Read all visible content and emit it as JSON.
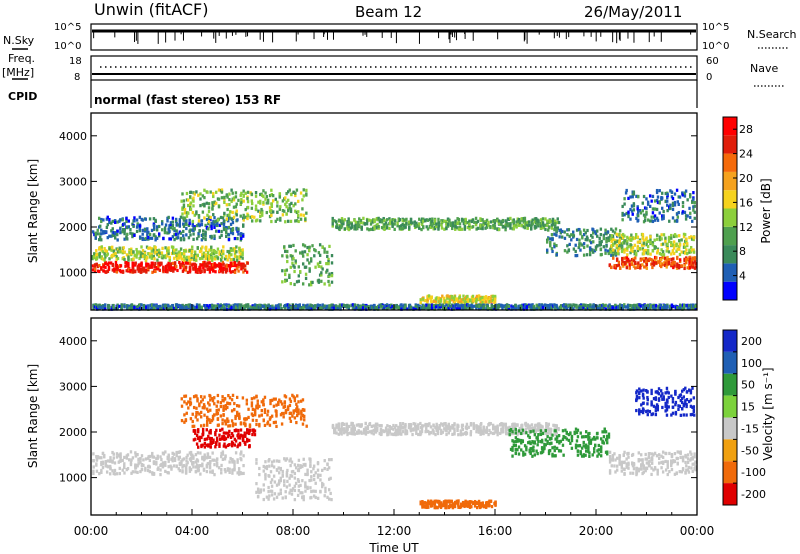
{
  "header": {
    "station": "Unwin (fitACF)",
    "beam": "Beam 12",
    "date": "26/May/2011"
  },
  "noise_panel": {
    "left_label": "N.Sky",
    "left_ticks": [
      "10^5",
      "10^0"
    ],
    "right_ticks": [
      "10^5",
      "10^0"
    ],
    "right_label": "N.Search"
  },
  "freq_panel": {
    "left_label_1": "Freq.",
    "left_label_2": "[MHz]",
    "left_ticks": [
      "18",
      "8"
    ],
    "right_ticks": [
      "60",
      "0"
    ],
    "right_label": "Nave"
  },
  "cpid_panel": {
    "label": "CPID",
    "text": "normal (fast stereo) 153 RF"
  },
  "chart_data": [
    {
      "type": "heatmap",
      "title": "Power",
      "ylabel": "Slant Range [km]",
      "xlabel": "",
      "ylim": [
        180,
        4500
      ],
      "yticks": [
        "1000",
        "2000",
        "3000",
        "4000"
      ],
      "colorbar": {
        "label": "Power [dB]",
        "ticks": [
          "4",
          "8",
          "12",
          "16",
          "20",
          "24",
          "28"
        ],
        "range": [
          0,
          30
        ]
      },
      "bands": [
        {
          "t_start": 0.0,
          "t_end": 6.2,
          "range_center": 1150,
          "range_width": 220,
          "value": 27
        },
        {
          "t_start": 0.0,
          "t_end": 6.0,
          "range_center": 1450,
          "range_width": 300,
          "value": 14
        },
        {
          "t_start": 0.0,
          "t_end": 6.0,
          "range_center": 2000,
          "range_width": 500,
          "value": 6
        },
        {
          "t_start": 3.5,
          "t_end": 8.5,
          "range_center": 2500,
          "range_width": 700,
          "value": 12
        },
        {
          "t_start": 7.5,
          "t_end": 9.5,
          "range_center": 1200,
          "range_width": 900,
          "value": 10
        },
        {
          "t_start": 9.5,
          "t_end": 18.5,
          "range_center": 2100,
          "range_width": 250,
          "value": 10
        },
        {
          "t_start": 13.0,
          "t_end": 16.0,
          "range_center": 450,
          "range_width": 150,
          "value": 16
        },
        {
          "t_start": 18.0,
          "t_end": 21.0,
          "range_center": 1700,
          "range_width": 600,
          "value": 8
        },
        {
          "t_start": 20.5,
          "t_end": 24.0,
          "range_center": 1250,
          "range_width": 250,
          "value": 24
        },
        {
          "t_start": 20.5,
          "t_end": 24.0,
          "range_center": 1650,
          "range_width": 450,
          "value": 14
        },
        {
          "t_start": 21.0,
          "t_end": 24.0,
          "range_center": 2500,
          "range_width": 700,
          "value": 6
        },
        {
          "t_start": 0.0,
          "t_end": 24.0,
          "range_center": 280,
          "range_width": 100,
          "value": 6
        }
      ]
    },
    {
      "type": "heatmap",
      "title": "Velocity",
      "ylabel": "Slant Range [km]",
      "xlabel": "Time UT",
      "ylim": [
        180,
        4500
      ],
      "yticks": [
        "1000",
        "2000",
        "3000",
        "4000"
      ],
      "xticks": [
        "00:00",
        "04:00",
        "08:00",
        "12:00",
        "16:00",
        "20:00",
        "00:00"
      ],
      "xlim": [
        0,
        24
      ],
      "colorbar": {
        "label": "Velocity [m s⁻¹]",
        "ticks": [
          "200",
          "100",
          "50",
          "15",
          "-15",
          "-50",
          "-100",
          "-200"
        ]
      },
      "bands": [
        {
          "t_start": 0.0,
          "t_end": 6.0,
          "range_center": 1350,
          "range_width": 500,
          "value": 0
        },
        {
          "t_start": 4.0,
          "t_end": 6.5,
          "range_center": 1900,
          "range_width": 400,
          "value": -180
        },
        {
          "t_start": 3.5,
          "t_end": 8.5,
          "range_center": 2500,
          "range_width": 700,
          "value": -60
        },
        {
          "t_start": 6.5,
          "t_end": 9.5,
          "range_center": 1000,
          "range_width": 900,
          "value": 0
        },
        {
          "t_start": 9.5,
          "t_end": 18.5,
          "range_center": 2100,
          "range_width": 250,
          "value": 0
        },
        {
          "t_start": 13.0,
          "t_end": 16.0,
          "range_center": 450,
          "range_width": 150,
          "value": -60
        },
        {
          "t_start": 16.5,
          "t_end": 20.5,
          "range_center": 1800,
          "range_width": 600,
          "value": 40
        },
        {
          "t_start": 20.5,
          "t_end": 24.0,
          "range_center": 1350,
          "range_width": 500,
          "value": 0
        },
        {
          "t_start": 21.5,
          "t_end": 24.0,
          "range_center": 2700,
          "range_width": 600,
          "value": 120
        }
      ]
    }
  ],
  "colors": {
    "power_scale": [
      "#0000ff",
      "#1f5fb4",
      "#3a8a5a",
      "#4fa04f",
      "#8ccf3c",
      "#f5d21e",
      "#f5a21e",
      "#f56a0a",
      "#e01e0a",
      "#ff0000"
    ],
    "velocity_scale": [
      "#1428c8",
      "#1f5fb4",
      "#2f9a3a",
      "#7cd23c",
      "#c8c8c8",
      "#f0a010",
      "#f06a0a",
      "#e00000"
    ]
  }
}
